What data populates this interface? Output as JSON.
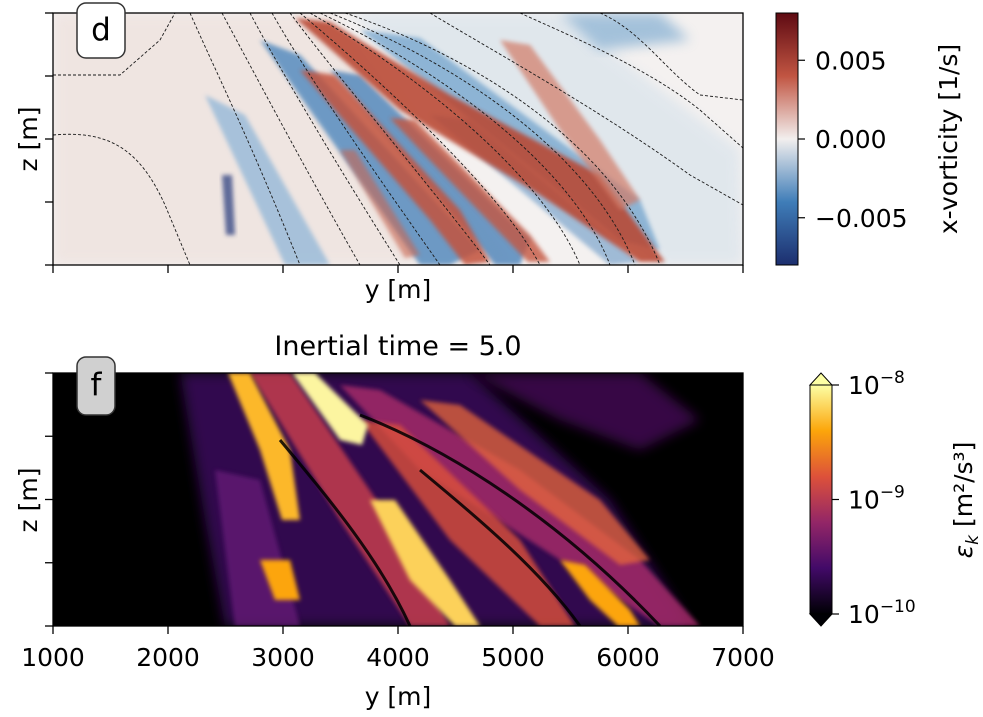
{
  "chart_data": [
    {
      "type": "heatmap",
      "panel_label": "d",
      "title": "",
      "xlabel": "y [m]",
      "ylabel": "z [m]",
      "xlim": [
        1000,
        7000
      ],
      "x_ticks": [
        1000,
        2000,
        3000,
        4000,
        5000,
        6000,
        7000
      ],
      "x_tick_labels_shown": false,
      "y_ticks_labeled": false,
      "colorbar": {
        "label": "x-vorticity [1/s]",
        "range": [
          -0.008,
          0.008
        ],
        "ticks": [
          -0.005,
          0.0,
          0.005
        ],
        "tick_labels": [
          "−0.005",
          "0.000",
          "0.005"
        ],
        "colormap": "diverging blue-white-red",
        "colors": [
          "#1c2e6e",
          "#3f7db8",
          "#f2efee",
          "#c15542",
          "#5e0a12"
        ]
      },
      "overlay": "black dashed contour lines",
      "features": [
        {
          "kind": "band",
          "sign": "positive",
          "y_start": 3100,
          "y_end": 6300
        },
        {
          "kind": "band",
          "sign": "positive",
          "y_start": 3100,
          "y_end": 4800
        },
        {
          "kind": "band",
          "sign": "positive",
          "y_start": 4100,
          "y_end": 5100
        },
        {
          "kind": "band",
          "sign": "negative",
          "y_start": 3400,
          "y_end": 5000
        },
        {
          "kind": "band",
          "sign": "negative",
          "y_start": 2300,
          "y_end": 3300
        },
        {
          "kind": "band",
          "sign": "negative",
          "y_start": 3900,
          "y_end": 5400
        }
      ]
    },
    {
      "type": "heatmap",
      "panel_label": "f",
      "title": "Inertial time = 5.0",
      "xlabel": "y [m]",
      "ylabel": "z [m]",
      "xlim": [
        1000,
        7000
      ],
      "x_ticks": [
        1000,
        2000,
        3000,
        4000,
        5000,
        6000,
        7000
      ],
      "x_tick_labels": [
        "1000",
        "2000",
        "3000",
        "4000",
        "5000",
        "6000",
        "7000"
      ],
      "y_ticks_labeled": false,
      "colorbar": {
        "label_text": "ε",
        "label_sub": "k",
        "label_units": " [m²/s³]",
        "scale": "log",
        "range": [
          1e-10,
          1e-08
        ],
        "extend": "both",
        "ticks": [
          1e-10,
          1e-09,
          1e-08
        ],
        "tick_bases": [
          "10",
          "10",
          "10"
        ],
        "tick_exps": [
          "−10",
          "−9",
          "−8"
        ],
        "colormap": "inferno",
        "colors": [
          "#000004",
          "#420a68",
          "#932667",
          "#dd513a",
          "#fca50a",
          "#fcffa4"
        ]
      },
      "background_color": "#000000",
      "features": [
        {
          "kind": "band",
          "intensity": "high",
          "y_start": 3100,
          "y_end": 3800
        },
        {
          "kind": "band",
          "intensity": "high",
          "y_start": 2600,
          "y_end": 4800
        },
        {
          "kind": "band",
          "intensity": "high",
          "y_start": 3800,
          "y_end": 6300
        },
        {
          "kind": "band",
          "intensity": "medium",
          "y_start": 2300,
          "y_end": 6600
        }
      ]
    }
  ]
}
